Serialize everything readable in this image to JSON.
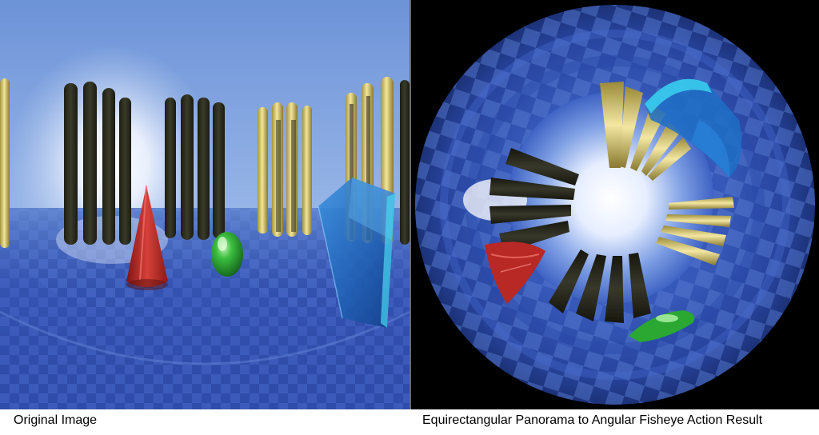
{
  "captions": {
    "left": "Original Image",
    "right": "Equirectangular Panorama to Angular Fisheye Action Result"
  },
  "colors": {
    "sky": "#6d93d8",
    "floor": "#3e5fbd",
    "pillar_dark": "#2f2f22",
    "pillar_yellow": "#e3d37c",
    "cone": "#c62e2a",
    "egg": "#2fae32",
    "glass": "#2b77c9",
    "background": "#000000"
  }
}
